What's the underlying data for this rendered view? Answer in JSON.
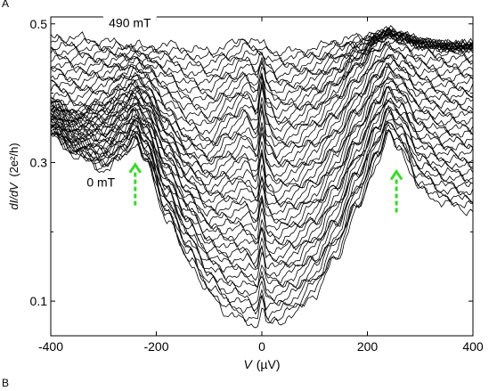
{
  "panels": {
    "top": "A",
    "bottom": "B"
  },
  "chart_data": {
    "type": "line",
    "xlabel": "V (µV)",
    "xlabel_var": "V",
    "xlabel_unit": "(µV)",
    "ylabel": "dI/dV (2e²/h)",
    "ylabel_var": "dI/dV",
    "ylabel_unit": "(2e²/h)",
    "xlim": [
      -400,
      400
    ],
    "ylim": [
      0.05,
      0.51
    ],
    "xticks": [
      -400,
      -200,
      0,
      200,
      400
    ],
    "xtick_labels": [
      "-400",
      "-200",
      "0",
      "200",
      "400"
    ],
    "yticks": [
      0.1,
      0.3,
      0.5
    ],
    "ytick_labels": [
      "0.1",
      "0.3",
      "0.5"
    ],
    "grid": false,
    "n_traces": 50,
    "series_note": "50 traces from 0 mT (bottom) to 490 mT (top) in 10 mT steps",
    "field_start_mT": 0,
    "field_step_mT": 10,
    "x": [
      -400,
      -350,
      -300,
      -260,
      -240,
      -220,
      -180,
      -140,
      -100,
      -60,
      -30,
      -10,
      0,
      10,
      30,
      60,
      100,
      140,
      180,
      220,
      240,
      260,
      300,
      350,
      400
    ],
    "trace_0mT": [
      0.34,
      0.31,
      0.29,
      0.31,
      0.33,
      0.3,
      0.22,
      0.16,
      0.11,
      0.08,
      0.07,
      0.065,
      0.09,
      0.065,
      0.07,
      0.08,
      0.11,
      0.16,
      0.23,
      0.3,
      0.34,
      0.32,
      0.26,
      0.24,
      0.23
    ],
    "trace_490mT": [
      0.48,
      0.48,
      0.475,
      0.47,
      0.47,
      0.465,
      0.47,
      0.465,
      0.46,
      0.47,
      0.48,
      0.475,
      0.47,
      0.465,
      0.46,
      0.46,
      0.465,
      0.475,
      0.48,
      0.485,
      0.49,
      0.485,
      0.475,
      0.47,
      0.47
    ],
    "trace_mid": [
      0.39,
      0.375,
      0.39,
      0.41,
      0.42,
      0.41,
      0.37,
      0.34,
      0.33,
      0.36,
      0.38,
      0.36,
      0.41,
      0.36,
      0.34,
      0.35,
      0.37,
      0.4,
      0.44,
      0.475,
      0.485,
      0.48,
      0.47,
      0.465,
      0.465
    ],
    "annotations": [
      {
        "text": "490 mT",
        "x": -250,
        "y": 0.495
      },
      {
        "text": "0 mT",
        "x": -305,
        "y": 0.265
      }
    ],
    "arrows": [
      {
        "x": -240,
        "y_from": 0.238,
        "y_to": 0.297,
        "color": "#33dd22"
      },
      {
        "x": 255,
        "y_from": 0.228,
        "y_to": 0.287,
        "color": "#33dd22"
      }
    ]
  }
}
